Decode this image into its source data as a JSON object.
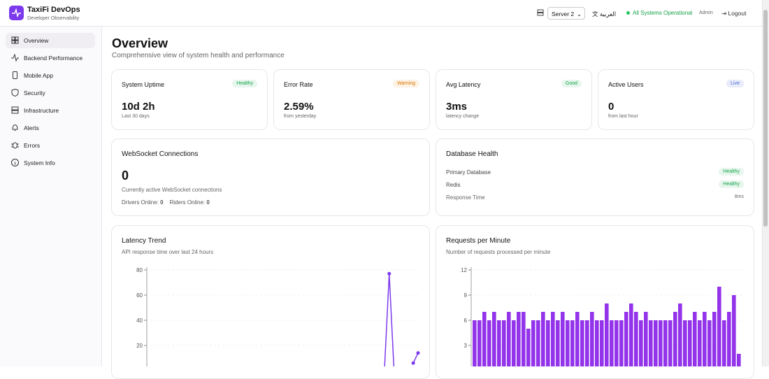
{
  "header": {
    "app_name": "TaxiFi DevOps",
    "app_subtitle": "Developer Observability",
    "server": "Server 2",
    "language": "العربية",
    "status": "All Systems Operational",
    "user": "Admin",
    "logout": "Logout"
  },
  "sidebar": {
    "items": [
      "Overview",
      "Backend Performance",
      "Mobile App",
      "Security",
      "Infrastructure",
      "Alerts",
      "Errors",
      "System Info"
    ]
  },
  "page": {
    "title": "Overview",
    "subtitle": "Comprehensive view of system health and performance"
  },
  "stats": [
    {
      "label": "System Uptime",
      "badge": "Healthy",
      "value": "10d 2h",
      "note": "Last 30 days"
    },
    {
      "label": "Error Rate",
      "badge": "Warning",
      "value": "2.59%",
      "note": "from yesterday"
    },
    {
      "label": "Avg Latency",
      "badge": "Good",
      "value": "3ms",
      "note": "latency change"
    },
    {
      "label": "Active Users",
      "badge": "Live",
      "value": "0",
      "note": "from last hour"
    }
  ],
  "websocket": {
    "title": "WebSocket Connections",
    "count": "0",
    "description": "Currently active WebSocket connections",
    "drivers_label": "Drivers Online:",
    "drivers": "0",
    "riders_label": "Riders Online:",
    "riders": "0"
  },
  "database": {
    "title": "Database Health",
    "rows": [
      {
        "label": "Primary Database",
        "status": "Healthy"
      },
      {
        "label": "Redis",
        "status": "Healthy"
      },
      {
        "label": "Response Time",
        "status": "8ms"
      }
    ]
  },
  "latency_chart": {
    "type": "line",
    "title": "Latency Trend",
    "subtitle": "API response time over last 24 hours",
    "color": "#7c3aed",
    "values": [
      null,
      null,
      null,
      null,
      null,
      null,
      null,
      null,
      null,
      null,
      null,
      null,
      null,
      null,
      null,
      null,
      null,
      null,
      null,
      null,
      null,
      null,
      null,
      null,
      null,
      null,
      null,
      null,
      null,
      null,
      null,
      null,
      null,
      null,
      null,
      null,
      null,
      null,
      null,
      null,
      null,
      null,
      null,
      null,
      null,
      null,
      null,
      null,
      null,
      0,
      77,
      0,
      null,
      null,
      null,
      6,
      14
    ],
    "ylim": [
      0,
      80
    ],
    "yticks": [
      20,
      40,
      60,
      80
    ],
    "grid": true
  },
  "requests_chart": {
    "type": "bar",
    "title": "Requests per Minute",
    "subtitle": "Number of requests processed per minute",
    "color": "#9333ea",
    "values": [
      6,
      6,
      7,
      6,
      7,
      6,
      6,
      7,
      6,
      7,
      7,
      5,
      6,
      6,
      7,
      6,
      7,
      6,
      7,
      6,
      6,
      7,
      6,
      6,
      7,
      6,
      6,
      8,
      6,
      6,
      6,
      7,
      8,
      7,
      6,
      7,
      6,
      6,
      6,
      6,
      6,
      7,
      8,
      6,
      6,
      7,
      6,
      7,
      6,
      7,
      10,
      6,
      7,
      9,
      2
    ],
    "ylim": [
      0,
      12
    ],
    "yticks": [
      3,
      6,
      9,
      12
    ],
    "grid": true
  }
}
